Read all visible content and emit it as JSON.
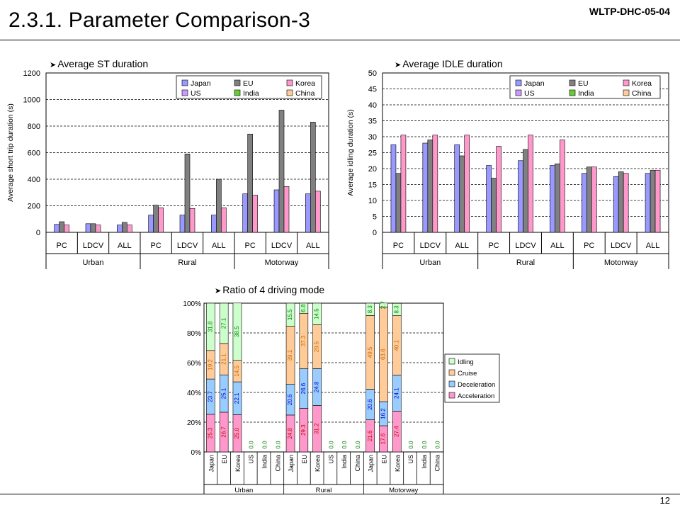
{
  "header": {
    "title": "2.3.1. Parameter Comparison-3",
    "doc_id": "WLTP-DHC-05-04",
    "page": "12"
  },
  "bullets": {
    "st": "Average ST duration",
    "idle": "Average IDLE duration",
    "ratio": "Ratio of 4 driving mode"
  },
  "colors": {
    "Japan": "#9999ff",
    "EU": "#808080",
    "Korea": "#ff99cc",
    "US": "#cc99ff",
    "India": "#66cc33",
    "China": "#ffcc99",
    "Idling": "#ccffcc",
    "Cruise": "#ffcc99",
    "Deceleration": "#99ccff",
    "Acceleration": "#ff99cc"
  },
  "chart_data": [
    {
      "type": "bar",
      "ylabel": "Average short trip duration (s)",
      "ylim": [
        0,
        1200
      ],
      "yticks": [
        "0",
        "200",
        "400",
        "600",
        "800",
        "1000",
        "1200"
      ],
      "categories": [
        "PC",
        "LDCV",
        "ALL",
        "PC",
        "LDCV",
        "ALL",
        "PC",
        "LDCV",
        "ALL"
      ],
      "groups": [
        "Urban",
        "Rural",
        "Motorway"
      ],
      "legend": [
        "Japan",
        "EU",
        "Korea",
        "US",
        "India",
        "China"
      ],
      "legend_placement": "top-right",
      "grid": true,
      "series": [
        {
          "name": "Japan",
          "values": [
            60,
            65,
            55,
            130,
            130,
            130,
            290,
            320,
            290
          ]
        },
        {
          "name": "EU",
          "values": [
            80,
            65,
            75,
            205,
            590,
            400,
            740,
            920,
            830
          ]
        },
        {
          "name": "Korea",
          "values": [
            55,
            55,
            55,
            185,
            180,
            185,
            280,
            345,
            310
          ]
        }
      ]
    },
    {
      "type": "bar",
      "ylabel": "Average idling duration (s)",
      "ylim": [
        0,
        50
      ],
      "yticks": [
        "0",
        "5",
        "10",
        "15",
        "20",
        "25",
        "30",
        "35",
        "40",
        "45",
        "50"
      ],
      "categories": [
        "PC",
        "LDCV",
        "ALL",
        "PC",
        "LDCV",
        "ALL",
        "PC",
        "LDCV",
        "ALL"
      ],
      "groups": [
        "Urban",
        "Rural",
        "Motorway"
      ],
      "legend": [
        "Japan",
        "EU",
        "Korea",
        "US",
        "India",
        "China"
      ],
      "legend_placement": "top-right",
      "grid": true,
      "series": [
        {
          "name": "Japan",
          "values": [
            27.5,
            28.0,
            27.5,
            21.0,
            22.5,
            21.0,
            18.5,
            17.5,
            18.5
          ]
        },
        {
          "name": "EU",
          "values": [
            18.5,
            29.0,
            24.0,
            17.0,
            26.0,
            21.5,
            20.5,
            19.0,
            19.5
          ]
        },
        {
          "name": "Korea",
          "values": [
            30.5,
            30.5,
            30.5,
            27.0,
            30.5,
            29.0,
            20.5,
            18.5,
            19.5
          ]
        }
      ]
    },
    {
      "type": "bar",
      "stacked": true,
      "ylim": [
        0,
        100
      ],
      "yticks": [
        "0%",
        "20%",
        "40%",
        "60%",
        "80%",
        "100%"
      ],
      "legend": [
        "Idling",
        "Cruise",
        "Deceleration",
        "Acceleration"
      ],
      "legend_placement": "right",
      "groups": [
        {
          "name": "Urban",
          "categories": [
            "Japan",
            "EU",
            "Korea",
            "US",
            "India",
            "China"
          ],
          "Acceleration": [
            25.3,
            26.7,
            25.0,
            0,
            0,
            0
          ],
          "Deceleration": [
            23.7,
            25.1,
            22.1,
            0,
            0,
            0
          ],
          "Cruise": [
            19.2,
            21.1,
            14.5,
            0,
            0,
            0
          ],
          "Idling": [
            31.8,
            27.1,
            38.5,
            0,
            0,
            0
          ],
          "labels": {
            "Acceleration": [
              "25.3",
              "26.7",
              "25.0",
              "",
              "",
              ""
            ],
            "Deceleration": [
              "23.7",
              "25.1",
              "22.1",
              "",
              "",
              ""
            ],
            "Cruise": [
              "19.2",
              "21.1",
              "14.5",
              "",
              "",
              ""
            ],
            "Idling": [
              "31.8",
              "27.1",
              "38.5",
              "",
              "",
              ""
            ]
          },
          "zero_labels": [
            "",
            "",
            "",
            "0.0",
            "0.0",
            "0.0"
          ]
        },
        {
          "name": "Rural",
          "categories": [
            "Japan",
            "EU",
            "Korea",
            "US",
            "India",
            "China"
          ],
          "Acceleration": [
            24.8,
            29.3,
            31.2,
            0,
            0,
            0
          ],
          "Deceleration": [
            20.6,
            26.6,
            24.8,
            0,
            0,
            0
          ],
          "Cruise": [
            39.1,
            37.3,
            29.5,
            0,
            0,
            0
          ],
          "Idling": [
            15.5,
            6.8,
            14.5,
            0,
            0,
            0
          ],
          "labels": {
            "Acceleration": [
              "24.8",
              "29.3",
              "31.2",
              "",
              "",
              ""
            ],
            "Deceleration": [
              "20.6",
              "26.6",
              "24.8",
              "",
              "",
              ""
            ],
            "Cruise": [
              "39.1",
              "37.3",
              "29.5",
              "",
              "",
              ""
            ],
            "Idling": [
              "15.5",
              "6.8",
              "14.5",
              "",
              "",
              ""
            ]
          },
          "zero_labels": [
            "",
            "",
            "",
            "0.0",
            "0.0",
            "0.0"
          ]
        },
        {
          "name": "Motorway",
          "categories": [
            "Japan",
            "EU",
            "Korea",
            "US",
            "India",
            "China"
          ],
          "Acceleration": [
            21.6,
            17.6,
            27.4,
            0,
            0,
            0
          ],
          "Deceleration": [
            20.6,
            16.2,
            24.1,
            0,
            0,
            0
          ],
          "Cruise": [
            49.5,
            63.6,
            40.1,
            0,
            0,
            0
          ],
          "Idling": [
            8.3,
            2.7,
            8.3,
            0,
            0,
            0
          ],
          "labels": {
            "Acceleration": [
              "21.6",
              "17.6",
              "27.4",
              "",
              "",
              ""
            ],
            "Deceleration": [
              "20.6",
              "16.2",
              "24.1",
              "",
              "",
              ""
            ],
            "Cruise": [
              "49.5",
              "63.6",
              "40.1",
              "",
              "",
              ""
            ],
            "Idling": [
              "8.3",
              "2.7",
              "8.3",
              "",
              "",
              ""
            ]
          },
          "zero_labels": [
            "",
            "",
            "",
            "0.0",
            "0.0",
            "0.0"
          ]
        }
      ]
    }
  ]
}
